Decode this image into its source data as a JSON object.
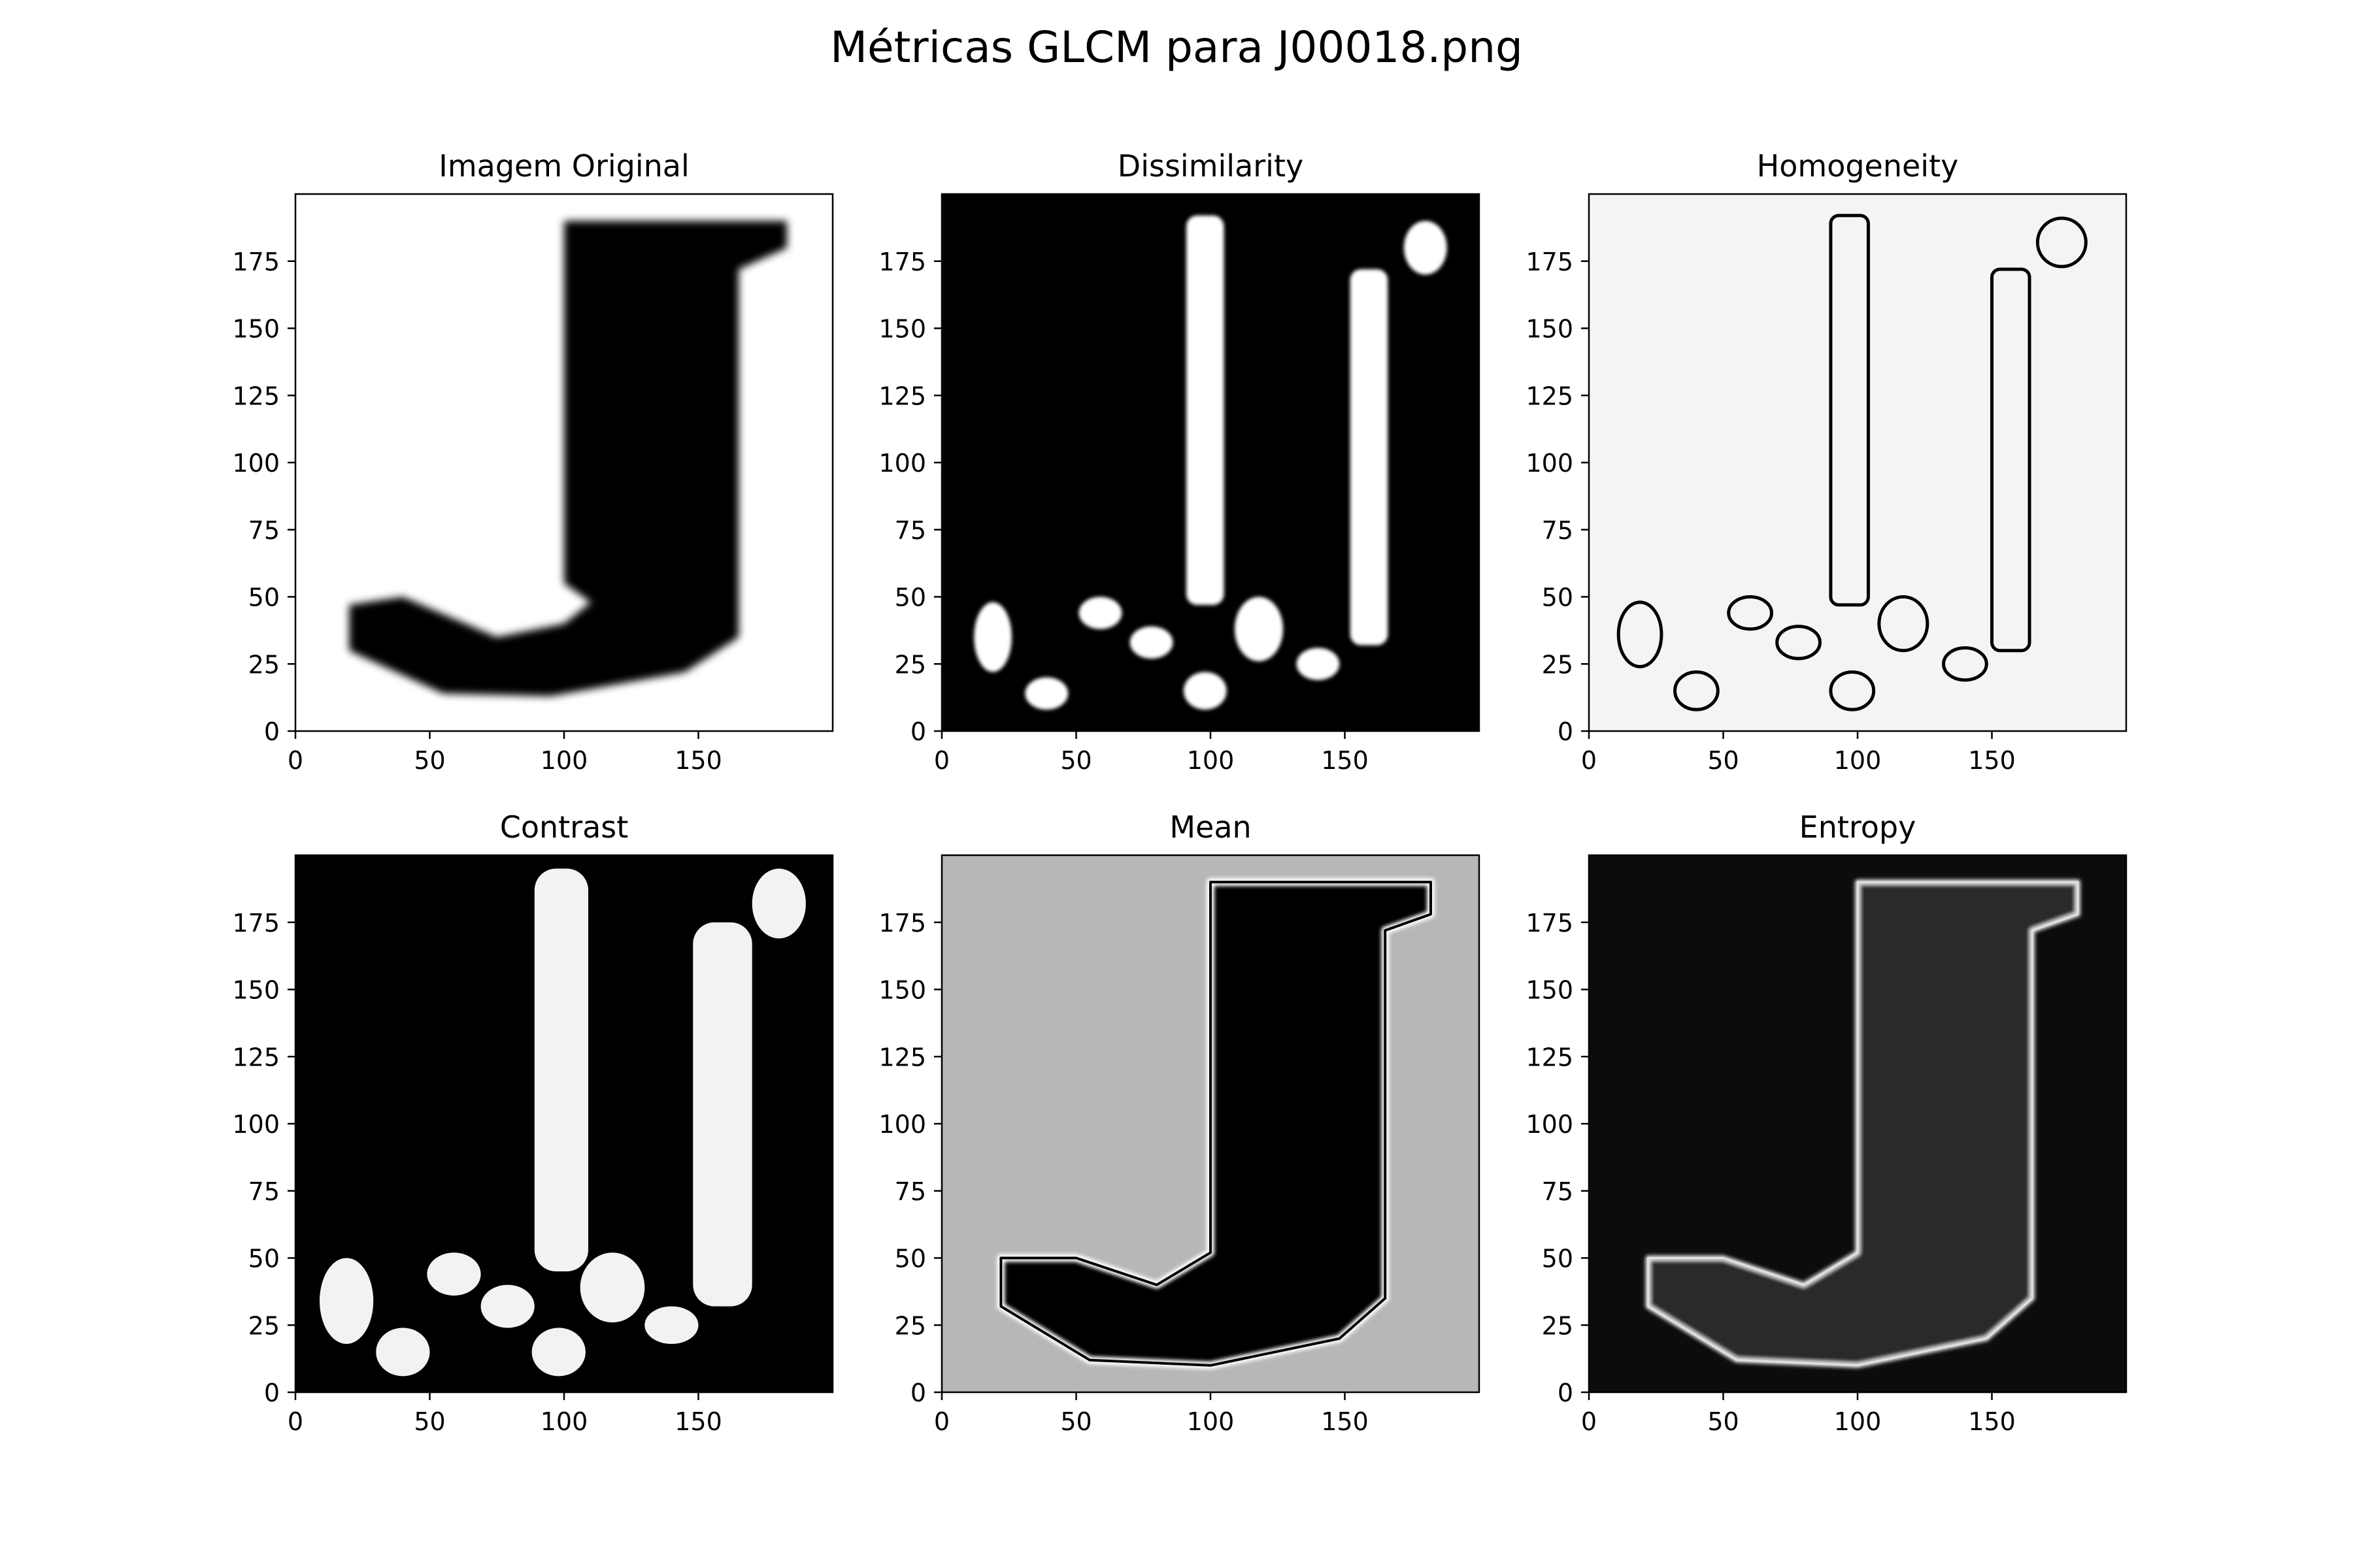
{
  "figure": {
    "title": "Métricas GLCM para J00018.png",
    "background": "#ffffff"
  },
  "chart_data": [
    {
      "type": "heatmap",
      "title": "Imagem Original",
      "colormap": "gray",
      "xlim": [
        0,
        200
      ],
      "ylim": [
        200,
        0
      ],
      "xticks": [
        0,
        50,
        100,
        150
      ],
      "yticks": [
        0,
        25,
        50,
        75,
        100,
        125,
        150,
        175
      ],
      "grid": false,
      "background_color": "#ffffff",
      "foreground_color": "#000000"
    },
    {
      "type": "heatmap",
      "title": "Dissimilarity",
      "colormap": "gray",
      "xlim": [
        0,
        200
      ],
      "ylim": [
        200,
        0
      ],
      "xticks": [
        0,
        50,
        100,
        150
      ],
      "yticks": [
        0,
        25,
        50,
        75,
        100,
        125,
        150,
        175
      ],
      "grid": false,
      "background_color": "#000000",
      "foreground_color": "#ffffff"
    },
    {
      "type": "heatmap",
      "title": "Homogeneity",
      "colormap": "gray",
      "xlim": [
        0,
        200
      ],
      "ylim": [
        200,
        0
      ],
      "xticks": [
        0,
        50,
        100,
        150
      ],
      "yticks": [
        0,
        25,
        50,
        75,
        100,
        125,
        150,
        175
      ],
      "grid": false,
      "background_color": "#f4f4f4",
      "foreground_color": "#000000"
    },
    {
      "type": "heatmap",
      "title": "Contrast",
      "colormap": "gray",
      "xlim": [
        0,
        200
      ],
      "ylim": [
        200,
        0
      ],
      "xticks": [
        0,
        50,
        100,
        150
      ],
      "yticks": [
        0,
        25,
        50,
        75,
        100,
        125,
        150,
        175
      ],
      "grid": false,
      "background_color": "#000000",
      "foreground_color": "#f2f2f2"
    },
    {
      "type": "heatmap",
      "title": "Mean",
      "colormap": "gray",
      "xlim": [
        0,
        200
      ],
      "ylim": [
        200,
        0
      ],
      "xticks": [
        0,
        50,
        100,
        150
      ],
      "yticks": [
        0,
        25,
        50,
        75,
        100,
        125,
        150,
        175
      ],
      "grid": false,
      "background_color": "#b7b7b7",
      "foreground_color": "#000000"
    },
    {
      "type": "heatmap",
      "title": "Entropy",
      "colormap": "gray",
      "xlim": [
        0,
        200
      ],
      "ylim": [
        200,
        0
      ],
      "xticks": [
        0,
        50,
        100,
        150
      ],
      "yticks": [
        0,
        25,
        50,
        75,
        100,
        125,
        150,
        175
      ],
      "grid": false,
      "background_color": "#0c0c0c",
      "foreground_color": "#e0e0e0"
    }
  ]
}
